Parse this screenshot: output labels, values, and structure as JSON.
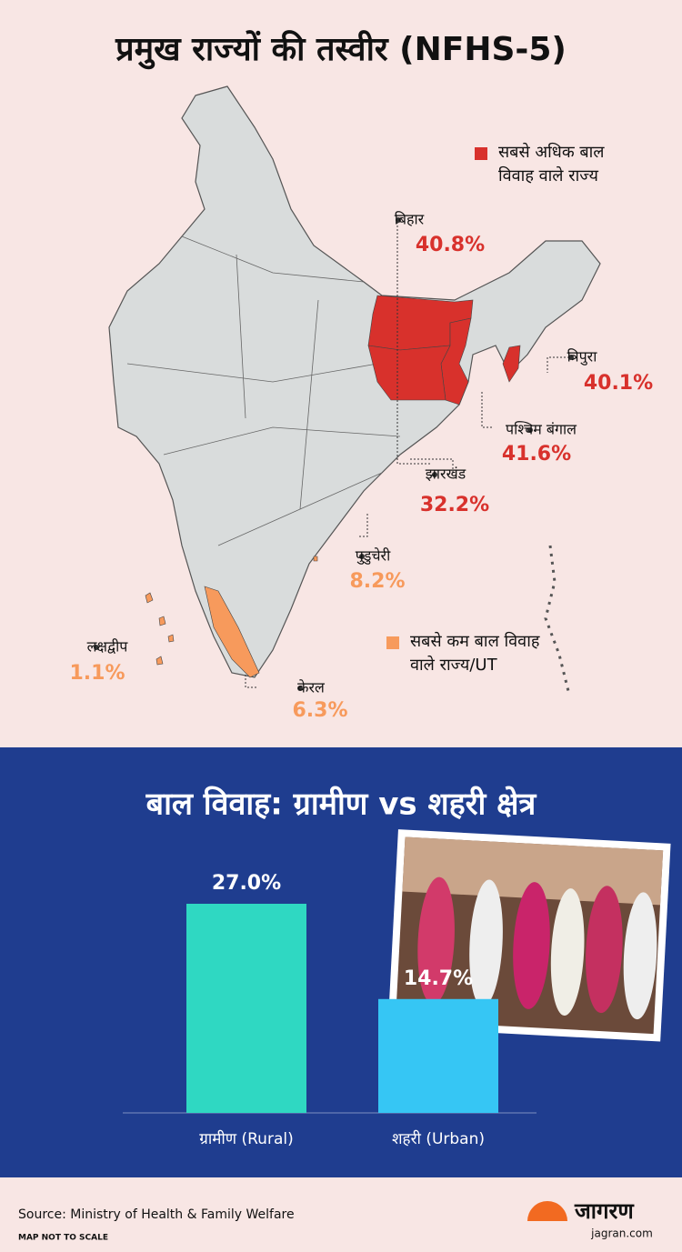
{
  "map": {
    "title": "प्रमुख राज्यों की तस्वीर (NFHS-5)",
    "names": [
      "बिहार",
      "त्रिपुरा",
      "पश्चिम बंगाल",
      "झारखंड",
      "पुडुचेरी",
      "लक्षद्वीप",
      "केरल"
    ],
    "values": [
      40.8,
      40.1,
      41.6,
      32.2,
      8.2,
      1.1,
      6.3
    ],
    "value_labels": [
      "40.8%",
      "40.1%",
      "41.6%",
      "32.2%",
      "8.2%",
      "1.1%",
      "6.3%"
    ],
    "groups": [
      "high",
      "high",
      "high",
      "high",
      "low",
      "low",
      "low"
    ],
    "legend": {
      "high": {
        "color": "#d8312c",
        "lines": [
          "सबसे अधिक बाल",
          "विवाह वाले राज्य"
        ]
      },
      "low": {
        "color": "#f79a5c",
        "lines": [
          "सबसे कम बाल विवाह",
          "वाले राज्य/UT"
        ]
      }
    }
  },
  "chart_data": {
    "type": "bar",
    "title": "बाल विवाह: ग्रामीण vs शहरी क्षेत्र",
    "categories": [
      "ग्रामीण (Rural)",
      "शहरी (Urban)"
    ],
    "values": [
      27.0,
      14.7
    ],
    "value_labels": [
      "27.0%",
      "14.7%"
    ],
    "colors": [
      "#2fd8c2",
      "#36c6f4"
    ]
  },
  "footer": {
    "source": "Source: Ministry of Health & Family Welfare",
    "note": "MAP NOT TO SCALE",
    "brand": "जागरण",
    "site": "jagran.com"
  }
}
